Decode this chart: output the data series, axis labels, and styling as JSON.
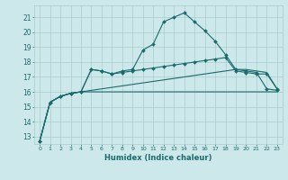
{
  "xlabel": "Humidex (Indice chaleur)",
  "bg_color": "#cce8ea",
  "grid_color": "#aacccc",
  "line_color": "#1a6b6b",
  "xlim": [
    -0.5,
    23.5
  ],
  "ylim": [
    12.5,
    21.8
  ],
  "yticks": [
    13,
    14,
    15,
    16,
    17,
    18,
    19,
    20,
    21
  ],
  "xticks": [
    0,
    1,
    2,
    3,
    4,
    5,
    6,
    7,
    8,
    9,
    10,
    11,
    12,
    13,
    14,
    15,
    16,
    17,
    18,
    19,
    20,
    21,
    22,
    23
  ],
  "series": [
    {
      "x": [
        0,
        1,
        2,
        3,
        4,
        5,
        6,
        7,
        8,
        9,
        10,
        11,
        12,
        13,
        14,
        15,
        16,
        17,
        18,
        19,
        20,
        21,
        22,
        23
      ],
      "y": [
        12.7,
        15.3,
        15.7,
        15.9,
        16.0,
        16.0,
        16.0,
        16.0,
        16.0,
        16.0,
        16.0,
        16.0,
        16.0,
        16.0,
        16.0,
        16.0,
        16.0,
        16.0,
        16.0,
        16.0,
        16.0,
        16.0,
        16.0,
        16.0
      ],
      "marker": false
    },
    {
      "x": [
        0,
        1,
        2,
        3,
        4,
        5,
        6,
        7,
        8,
        9,
        10,
        11,
        12,
        13,
        14,
        15,
        16,
        17,
        18,
        19,
        20,
        21,
        22,
        23
      ],
      "y": [
        12.7,
        15.3,
        15.7,
        15.9,
        16.0,
        16.1,
        16.2,
        16.3,
        16.4,
        16.5,
        16.6,
        16.7,
        16.8,
        16.9,
        17.0,
        17.1,
        17.2,
        17.3,
        17.4,
        17.5,
        17.5,
        17.4,
        17.3,
        16.2
      ],
      "marker": false
    },
    {
      "x": [
        0,
        1,
        2,
        3,
        4,
        5,
        6,
        7,
        8,
        9,
        10,
        11,
        12,
        13,
        14,
        15,
        16,
        17,
        18,
        19,
        20,
        21,
        22,
        23
      ],
      "y": [
        12.7,
        15.3,
        15.7,
        15.9,
        16.0,
        17.5,
        17.4,
        17.2,
        17.3,
        17.4,
        17.5,
        17.6,
        17.7,
        17.8,
        17.9,
        18.0,
        18.1,
        18.2,
        18.3,
        17.4,
        17.3,
        17.2,
        17.2,
        16.2
      ],
      "marker": true
    },
    {
      "x": [
        0,
        1,
        2,
        3,
        4,
        5,
        6,
        7,
        8,
        9,
        10,
        11,
        12,
        13,
        14,
        15,
        16,
        17,
        18,
        19,
        20,
        21,
        22,
        23
      ],
      "y": [
        12.7,
        15.3,
        15.7,
        15.9,
        16.0,
        17.5,
        17.4,
        17.2,
        17.4,
        17.5,
        18.8,
        19.2,
        20.7,
        21.0,
        21.3,
        20.7,
        20.1,
        19.4,
        18.5,
        17.5,
        17.4,
        17.3,
        16.2,
        16.1
      ],
      "marker": true
    }
  ]
}
